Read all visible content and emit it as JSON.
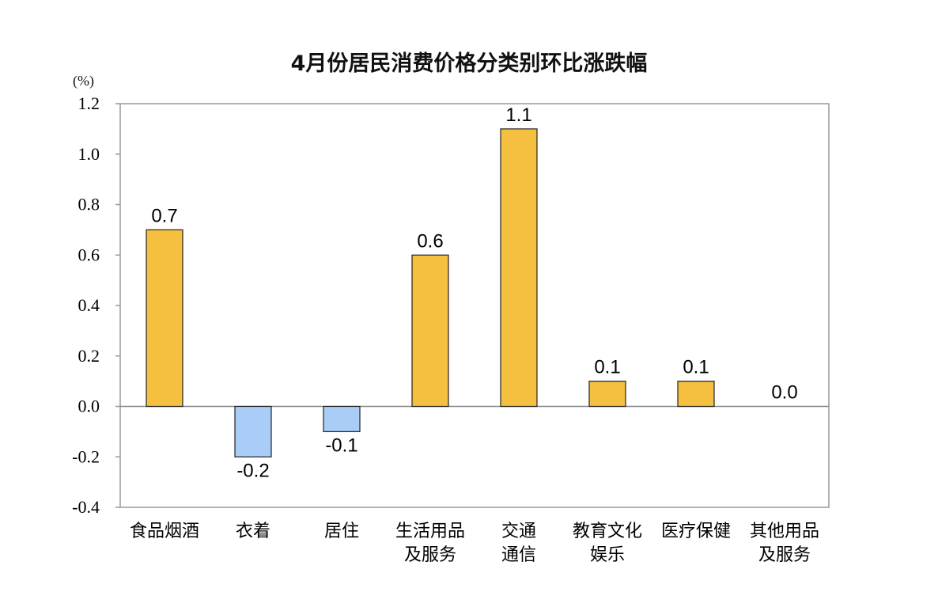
{
  "chart_data": {
    "type": "bar",
    "title": "4月份居民消费价格分类别环比涨跌幅",
    "unit": "(%)",
    "ylim": [
      -0.4,
      1.2
    ],
    "yticks": [
      "1.2",
      "1.0",
      "0.8",
      "0.6",
      "0.4",
      "0.2",
      "0.0",
      "-0.2",
      "-0.4"
    ],
    "ytick_values": [
      1.2,
      1.0,
      0.8,
      0.6,
      0.4,
      0.2,
      0.0,
      -0.2,
      -0.4
    ],
    "categories": [
      [
        "食品烟酒"
      ],
      [
        "衣着"
      ],
      [
        "居住"
      ],
      [
        "生活用品",
        "及服务"
      ],
      [
        "交通",
        "通信"
      ],
      [
        "教育文化",
        "娱乐"
      ],
      [
        "医疗保健"
      ],
      [
        "其他用品",
        "及服务"
      ]
    ],
    "values": [
      0.7,
      -0.2,
      -0.1,
      0.6,
      1.1,
      0.1,
      0.1,
      0.0
    ],
    "value_labels": [
      "0.7",
      "-0.2",
      "-0.1",
      "0.6",
      "1.1",
      "0.1",
      "0.1",
      "0.0"
    ],
    "colors": {
      "positive": "#F5C040",
      "negative": "#A9CDF6",
      "border": "#222222",
      "frame": "#999999"
    },
    "grid": false,
    "legend": "none"
  }
}
